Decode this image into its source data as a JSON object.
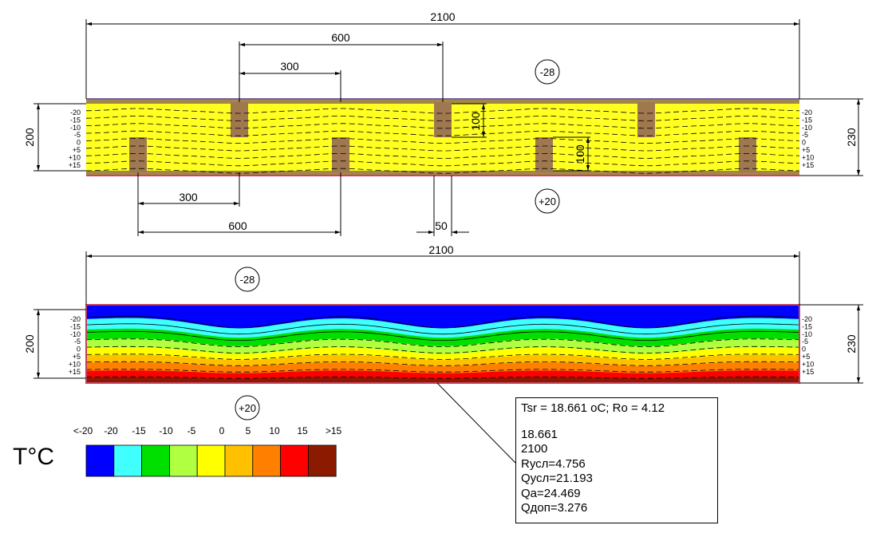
{
  "diagram_top": {
    "outside_temp": "-28",
    "inside_temp": "+20",
    "dims": {
      "total_width": "2100",
      "spacing_600_top": "600",
      "spacing_300_top": "300",
      "spacing_300_bottom": "300",
      "spacing_600_bottom": "600",
      "stud_width": "50",
      "stud_depth_top": "100",
      "stud_depth_bottom": "100",
      "height_left": "200",
      "height_right": "230"
    },
    "contour_labels": [
      "-20",
      "-15",
      "-10",
      "-5",
      "0",
      "+5",
      "+10",
      "+15"
    ]
  },
  "diagram_bottom": {
    "outside_temp": "-28",
    "inside_temp": "+20",
    "dims": {
      "total_width": "2100",
      "height_left": "200",
      "height_right": "230"
    },
    "contour_labels": [
      "-20",
      "-15",
      "-10",
      "-5",
      "0",
      "+5",
      "+10",
      "+15"
    ]
  },
  "results": {
    "header": "Tsr = 18.661 oC; Ro = 4.12",
    "lines": [
      "18.661",
      "2100",
      "Rусл=4.756",
      "Qусл=21.193",
      "Qa=24.469",
      "Qдоп=3.276"
    ]
  },
  "legend": {
    "title": "T°C",
    "labels": [
      "<-20",
      "-20",
      "-15",
      "-10",
      "-5",
      "0",
      "5",
      "10",
      "15",
      ">15"
    ],
    "colors": [
      "#0000ff",
      "#40ffff",
      "#00e000",
      "#b0ff40",
      "#ffff00",
      "#ffc000",
      "#ff8000",
      "#ff0000",
      "#8b1a00"
    ]
  }
}
